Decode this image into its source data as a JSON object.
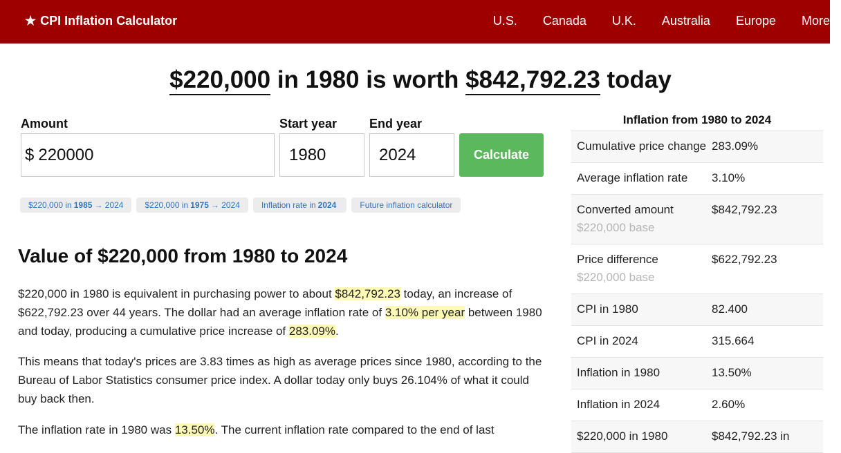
{
  "header": {
    "brand_star": "★",
    "brand_label": "CPI Inflation Calculator",
    "nav": [
      "U.S.",
      "Canada",
      "U.K.",
      "Australia",
      "Europe",
      "More"
    ]
  },
  "headline": {
    "amount": "$220,000",
    "mid": " in 1980 is worth ",
    "worth": "$842,792.23",
    "end": " today"
  },
  "form": {
    "amount_label": "Amount",
    "amount_prefix": "$",
    "amount_value": "220000",
    "start_label": "Start year",
    "start_value": "1980",
    "end_label": "End year",
    "end_value": "2024",
    "calculate_label": "Calculate"
  },
  "chips": [
    {
      "pre": "$220,000 in",
      "bold": "1985",
      "post": "→ 2024"
    },
    {
      "pre": "$220,000 in",
      "bold": "1975",
      "post": "→ 2024"
    },
    {
      "pre": "Inflation rate in",
      "bold": "2024",
      "post": ""
    },
    {
      "pre": "Future inflation calculator",
      "bold": "",
      "post": ""
    }
  ],
  "article": {
    "heading": "Value of $220,000 from 1980 to 2024",
    "p1": {
      "a": "$220,000 in 1980 is equivalent in purchasing power to about ",
      "h1": "$842,792.23",
      "b": " today, an increase of $622,792.23 over 44 years. The dollar had an average inflation rate of ",
      "h2": "3.10% per year",
      "c": " between 1980 and today, producing a cumulative price increase of ",
      "h3": "283.09%",
      "d": "."
    },
    "p2": "This means that today's prices are 3.83 times as high as average prices since 1980, according to the Bureau of Labor Statistics consumer price index. A dollar today only buys 26.104% of what it could buy back then.",
    "p3": {
      "a": "The inflation rate in 1980 was ",
      "h1": "13.50%",
      "b": ". The current inflation rate compared to the end of last"
    }
  },
  "table": {
    "title": "Inflation from 1980 to 2024",
    "rows": [
      {
        "k": "Cumulative price change",
        "v": "283.09%",
        "sub": ""
      },
      {
        "k": "Average inflation rate",
        "v": "3.10%",
        "sub": ""
      },
      {
        "k": "Converted amount",
        "v": "$842,792.23",
        "sub": "$220,000 base"
      },
      {
        "k": "Price difference",
        "v": "$622,792.23",
        "sub": "$220,000 base"
      },
      {
        "k": "CPI in 1980",
        "v": "82.400",
        "sub": ""
      },
      {
        "k": "CPI in 2024",
        "v": "315.664",
        "sub": ""
      },
      {
        "k": "Inflation in 1980",
        "v": "13.50%",
        "sub": ""
      },
      {
        "k": "Inflation in 2024",
        "v": "2.60%",
        "sub": ""
      },
      {
        "k": "$220,000 in 1980",
        "v": "$842,792.23 in",
        "sub": ""
      }
    ]
  }
}
